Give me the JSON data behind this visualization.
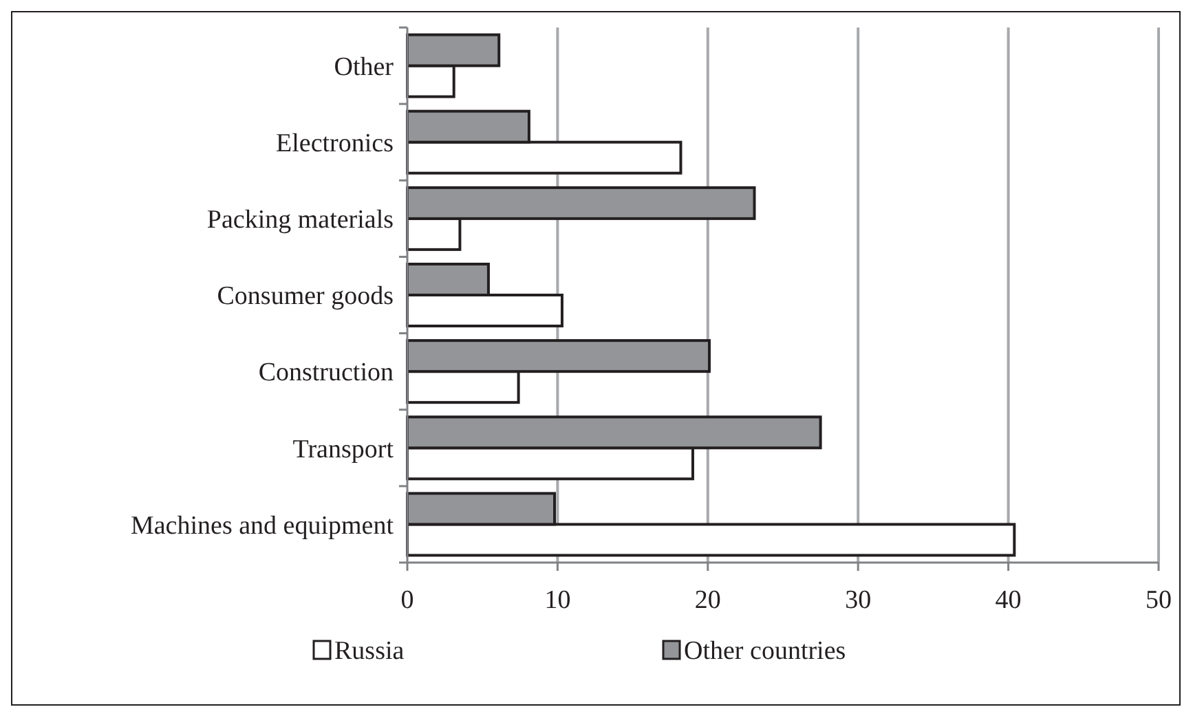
{
  "chart_data": {
    "type": "bar",
    "orientation": "horizontal",
    "categories": [
      "Other",
      "Electronics",
      "Packing materials",
      "Consumer goods",
      "Construction",
      "Transport",
      "Machines and equipment"
    ],
    "series": [
      {
        "name": "Russia",
        "color": "#ffffff",
        "values": [
          3.1,
          18.2,
          3.5,
          10.3,
          7.4,
          19.0,
          40.4
        ]
      },
      {
        "name": "Other countries",
        "color": "#939598",
        "values": [
          6.1,
          8.1,
          23.1,
          5.4,
          20.1,
          27.5,
          9.8
        ]
      }
    ],
    "xlim": [
      0,
      50
    ],
    "xticks": [
      0,
      10,
      20,
      30,
      40,
      50
    ],
    "grid": "x",
    "legend": "bottom"
  }
}
